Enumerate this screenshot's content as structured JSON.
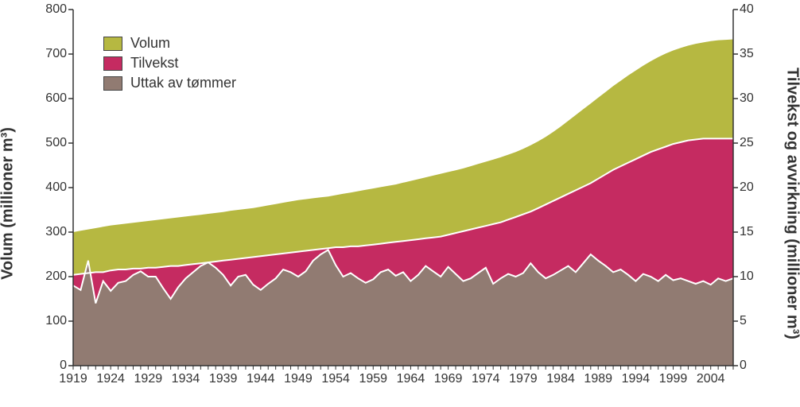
{
  "chart": {
    "type": "stacked-area-dual-axis",
    "background_color": "#ffffff",
    "font_family": "Arial",
    "tick_fontsize": 16,
    "label_fontsize": 20,
    "legend_fontsize": 18,
    "axis_color": "#333333",
    "y_left": {
      "label": "Volum (millioner m³)",
      "min": 0,
      "max": 800,
      "step": 100
    },
    "y_right": {
      "label": "Tilvekst og avvirkning (millioner m³)",
      "min": 0,
      "max": 40,
      "step": 5
    },
    "x": {
      "min": 1919,
      "max": 2007,
      "label_start": 1919,
      "label_step": 5,
      "label_end": 2004
    },
    "series": {
      "volum": {
        "label": "Volum",
        "color": "#b6b841",
        "border_top": "#ffffff",
        "axis": "left"
      },
      "tilvekst": {
        "label": "Tilvekst",
        "color": "#c52b61",
        "border_top": "#ffffff",
        "axis": "right"
      },
      "uttak": {
        "label": "Uttak av tømmer",
        "color": "#917b72",
        "border_top": "#ffffff",
        "axis": "right"
      }
    },
    "years": [
      1919,
      1920,
      1921,
      1922,
      1923,
      1924,
      1925,
      1926,
      1927,
      1928,
      1929,
      1930,
      1931,
      1932,
      1933,
      1934,
      1935,
      1936,
      1937,
      1938,
      1939,
      1940,
      1941,
      1942,
      1943,
      1944,
      1945,
      1946,
      1947,
      1948,
      1949,
      1950,
      1951,
      1952,
      1953,
      1954,
      1955,
      1956,
      1957,
      1958,
      1959,
      1960,
      1961,
      1962,
      1963,
      1964,
      1965,
      1966,
      1967,
      1968,
      1969,
      1970,
      1971,
      1972,
      1973,
      1974,
      1975,
      1976,
      1977,
      1978,
      1979,
      1980,
      1981,
      1982,
      1983,
      1984,
      1985,
      1986,
      1987,
      1988,
      1989,
      1990,
      1991,
      1992,
      1993,
      1994,
      1995,
      1996,
      1997,
      1998,
      1999,
      2000,
      2001,
      2002,
      2003,
      2004,
      2005,
      2006,
      2007
    ],
    "uttak": [
      9.0,
      8.5,
      11.8,
      7.0,
      9.5,
      8.4,
      9.3,
      9.5,
      10.2,
      10.6,
      10.0,
      10.0,
      8.7,
      7.5,
      8.8,
      9.8,
      10.5,
      11.2,
      11.6,
      11.0,
      10.2,
      9.0,
      10.0,
      10.2,
      9.1,
      8.5,
      9.2,
      9.8,
      10.8,
      10.5,
      10.0,
      10.6,
      11.8,
      12.5,
      13.0,
      11.3,
      10.0,
      10.4,
      9.8,
      9.3,
      9.7,
      10.5,
      10.8,
      10.1,
      10.5,
      9.5,
      10.2,
      11.2,
      10.6,
      10.0,
      11.1,
      10.3,
      9.5,
      9.8,
      10.4,
      11.0,
      9.2,
      9.8,
      10.3,
      10.0,
      10.4,
      11.5,
      10.5,
      9.8,
      10.2,
      10.7,
      11.2,
      10.5,
      11.5,
      12.5,
      11.8,
      11.2,
      10.5,
      10.8,
      10.2,
      9.5,
      10.3,
      10.0,
      9.5,
      10.2,
      9.6,
      9.8,
      9.5,
      9.2,
      9.5,
      9.1,
      9.8,
      9.5,
      9.8
    ],
    "tilvekst": [
      10.2,
      10.3,
      10.4,
      10.5,
      10.5,
      10.7,
      10.8,
      10.8,
      10.9,
      10.9,
      11.0,
      11.0,
      11.1,
      11.2,
      11.2,
      11.3,
      11.4,
      11.5,
      11.6,
      11.7,
      11.8,
      11.9,
      12.0,
      12.1,
      12.2,
      12.3,
      12.4,
      12.5,
      12.6,
      12.7,
      12.8,
      12.9,
      13.0,
      13.1,
      13.2,
      13.3,
      13.3,
      13.4,
      13.4,
      13.5,
      13.6,
      13.7,
      13.8,
      13.9,
      14.0,
      14.1,
      14.2,
      14.3,
      14.4,
      14.5,
      14.7,
      14.9,
      15.1,
      15.3,
      15.5,
      15.7,
      15.9,
      16.1,
      16.4,
      16.7,
      17.0,
      17.3,
      17.7,
      18.1,
      18.5,
      18.9,
      19.3,
      19.7,
      20.1,
      20.5,
      21.0,
      21.5,
      22.0,
      22.4,
      22.8,
      23.2,
      23.6,
      24.0,
      24.3,
      24.6,
      24.9,
      25.1,
      25.3,
      25.4,
      25.5,
      25.5,
      25.5,
      25.5,
      25.5
    ],
    "volum": [
      300,
      303,
      306,
      309,
      312,
      315,
      317,
      319,
      321,
      323,
      325,
      327,
      329,
      331,
      333,
      335,
      337,
      339,
      341,
      343,
      345,
      348,
      350,
      352,
      354,
      357,
      360,
      363,
      366,
      369,
      372,
      374,
      376,
      378,
      380,
      383,
      386,
      389,
      392,
      395,
      398,
      401,
      404,
      407,
      411,
      415,
      419,
      423,
      427,
      431,
      435,
      439,
      443,
      448,
      453,
      458,
      463,
      468,
      474,
      480,
      487,
      495,
      504,
      514,
      525,
      537,
      550,
      563,
      576,
      589,
      602,
      615,
      628,
      640,
      652,
      663,
      674,
      684,
      693,
      701,
      708,
      714,
      719,
      723,
      726,
      729,
      731,
      732,
      733
    ]
  },
  "legend_items": [
    {
      "key": "volum",
      "label": "Volum"
    },
    {
      "key": "tilvekst",
      "label": "Tilvekst"
    },
    {
      "key": "uttak",
      "label": "Uttak av tømmer"
    }
  ]
}
